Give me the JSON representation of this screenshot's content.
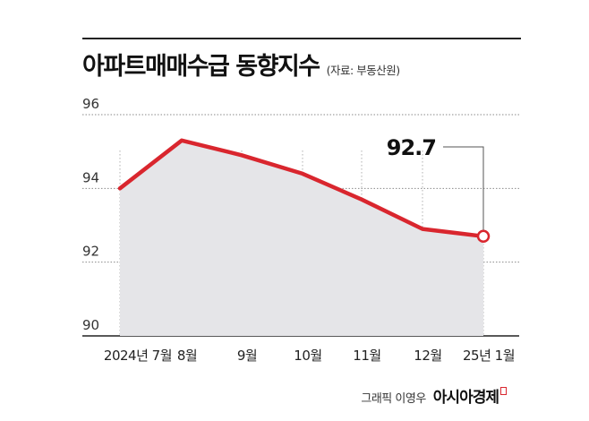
{
  "header": {
    "title": "아파트매매수급 동향지수",
    "source": "(자료: 부동산원)"
  },
  "chart_data": {
    "type": "area",
    "title": "아파트매매수급 동향지수",
    "categories": [
      "2024년 7월",
      "8월",
      "9월",
      "10월",
      "11월",
      "12월",
      "25년 1월"
    ],
    "series": [
      {
        "values": [
          94.0,
          95.3,
          94.9,
          94.4,
          93.7,
          92.9,
          92.7
        ]
      }
    ],
    "ylim": [
      90,
      96
    ],
    "yticks": [
      90,
      92,
      94,
      96
    ],
    "ytick_labels": [
      "90",
      "92",
      "94",
      "96"
    ],
    "callout": {
      "index": 6,
      "label": "92.7"
    },
    "grid": true,
    "colors": {
      "line": "#d9262e",
      "area": "#e5e5e8",
      "grid": "#8a8a8a",
      "axis": "#222222"
    }
  },
  "footer": {
    "credit": "그래픽 이영우",
    "brand": "아시아경제"
  }
}
